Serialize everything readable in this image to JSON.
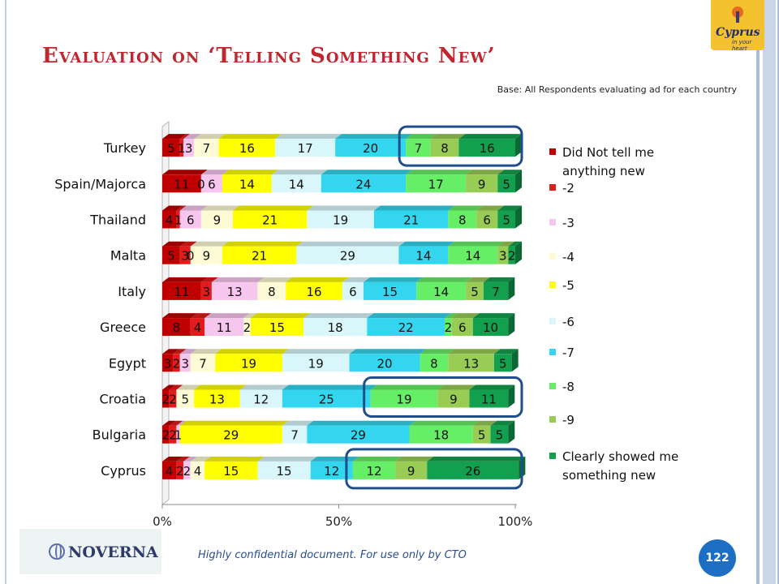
{
  "slide": {
    "title": "Evaluation on ‘Telling Something New’",
    "base_note": "Base: All Respondents evaluating ad for each country",
    "footer_note": "Highly confidential document. For use only by CTO",
    "page_number": "122",
    "noverna_logo_text": "NOVERNA",
    "cyprus_logo_text": "Cyprus",
    "cyprus_logo_tagline": "in your heart"
  },
  "chart_data": {
    "type": "bar",
    "orientation": "horizontal",
    "stacked": "percent",
    "categories": [
      "Turkey",
      "Spain/Majorca",
      "Thailand",
      "Malta",
      "Italy",
      "Greece",
      "Egypt",
      "Croatia",
      "Bulgaria",
      "Cyprus"
    ],
    "series": [
      {
        "name": "Did Not tell me anything new",
        "color": "#c00000",
        "values": [
          5,
          11,
          4,
          5,
          11,
          8,
          3,
          2,
          2,
          4
        ]
      },
      {
        "name": "-2",
        "color": "#e31b1b",
        "values": [
          1,
          0,
          1,
          3,
          3,
          4,
          2,
          2,
          2,
          2
        ]
      },
      {
        "name": "-3",
        "color": "#f7c6ee",
        "values": [
          3,
          6,
          6,
          0,
          13,
          11,
          3,
          0,
          1,
          2
        ]
      },
      {
        "name": "-4",
        "color": "#fdfbd6",
        "values": [
          7,
          0,
          9,
          9,
          8,
          2,
          7,
          5,
          0,
          4
        ]
      },
      {
        "name": "-5",
        "color": "#ffff00",
        "values": [
          16,
          14,
          21,
          21,
          16,
          15,
          19,
          13,
          29,
          15
        ]
      },
      {
        "name": "-6",
        "color": "#d9f7fb",
        "values": [
          17,
          14,
          19,
          29,
          6,
          18,
          19,
          12,
          7,
          15
        ]
      },
      {
        "name": "-7",
        "color": "#33d6ee",
        "values": [
          20,
          24,
          21,
          14,
          15,
          22,
          20,
          25,
          29,
          12
        ]
      },
      {
        "name": "-8",
        "color": "#66ee66",
        "values": [
          7,
          17,
          8,
          14,
          14,
          2,
          8,
          19,
          18,
          12
        ]
      },
      {
        "name": "-9",
        "color": "#99cc55",
        "values": [
          8,
          9,
          6,
          3,
          5,
          6,
          13,
          9,
          5,
          9
        ]
      },
      {
        "name": "Clearly showed me something new",
        "color": "#13a04e",
        "values": [
          16,
          5,
          5,
          2,
          7,
          10,
          5,
          11,
          5,
          26
        ]
      }
    ],
    "value_labels": [
      [
        "5",
        "1",
        "3",
        "7",
        "16",
        "17",
        "20",
        "7",
        "8",
        "16"
      ],
      [
        "11",
        "0",
        "6",
        "",
        "14",
        "14",
        "24",
        "17",
        "9",
        "5"
      ],
      [
        "4",
        "1",
        "6",
        "9",
        "21",
        "19",
        "21",
        "8",
        "6",
        "5"
      ],
      [
        "5",
        "3",
        "0",
        "9",
        "21",
        "29",
        "14",
        "14",
        "3",
        "2"
      ],
      [
        "11",
        "3",
        "13",
        "8",
        "16",
        "6",
        "15",
        "14",
        "5",
        "7"
      ],
      [
        "8",
        "4",
        "11",
        "2",
        "15",
        "18",
        "22",
        "2",
        "6",
        "10"
      ],
      [
        "3",
        "2",
        "3",
        "7",
        "19",
        "19",
        "20",
        "8",
        "13",
        "5"
      ],
      [
        "2",
        "2",
        "",
        "5",
        "13",
        "12",
        "25",
        "19",
        "9",
        "11"
      ],
      [
        "2",
        "2",
        "1",
        "",
        "29",
        "7",
        "29",
        "18",
        "5",
        "5"
      ],
      [
        "4",
        "2",
        "2",
        "4",
        "15",
        "15",
        "12",
        "12",
        "9",
        "26"
      ]
    ],
    "x_ticks": [
      "0%",
      "50%",
      "100%"
    ],
    "xlim": [
      0,
      100
    ],
    "legend_position": "right",
    "highlighted_series": [
      "-8",
      "-9",
      "Clearly showed me something new"
    ],
    "highlighted_categories": [
      "Turkey",
      "Croatia",
      "Cyprus"
    ],
    "highlight_color": "#1f4e8c"
  }
}
